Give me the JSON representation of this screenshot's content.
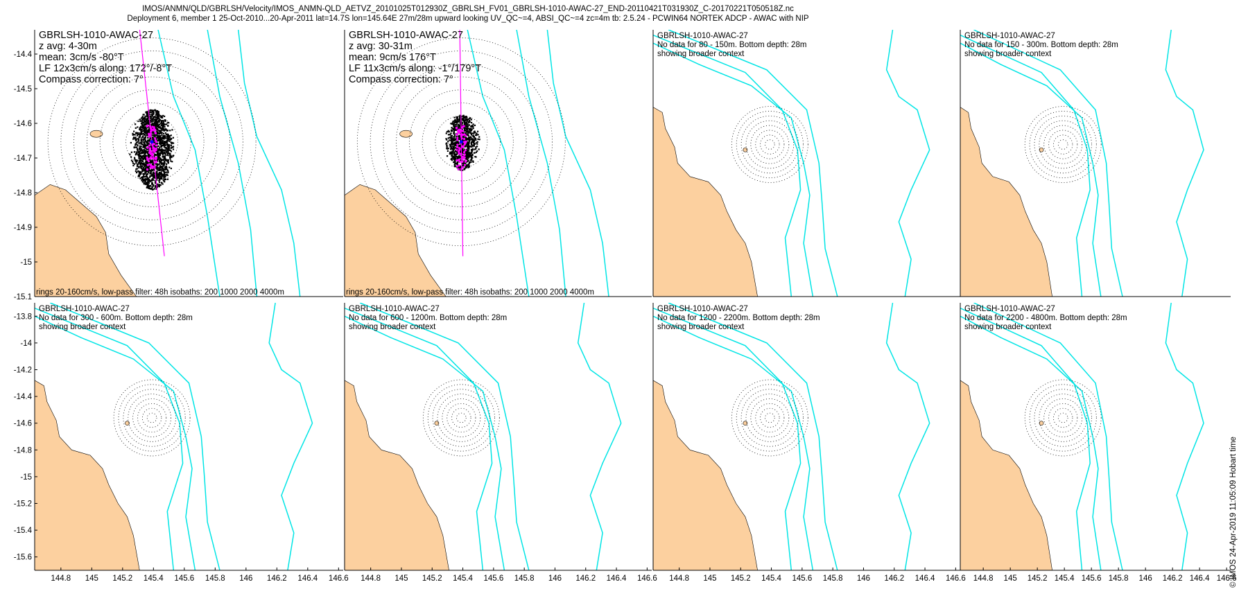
{
  "figure": {
    "title_line1": "IMOS/ANMN/QLD/GBRLSH/Velocity/IMOS_ANMN-QLD_AETVZ_20101025T012930Z_GBRLSH_FV01_GBRLSH-1010-AWAC-27_END-20110421T031930Z_C-20170221T050518Z.nc",
    "title_line2": "Deployment 6, member 1 25-Oct-2010...20-Apr-2011 lat=14.7S lon=145.64E 27m/28m upward looking UV_QC~=4, ABSI_QC~=4 zc=4m tb: 2.5.24 - PCWIN64 NORTEK ADCP - AWAC with NIP",
    "watermark": "© IMOS 24-Apr-2019 11:05:09 Hobart time"
  },
  "colors": {
    "land": "#fcd09f",
    "isobath": "#00e5e5",
    "scatter": "#000000",
    "lowpass": "#ff00ff",
    "mean": "#0000ff"
  },
  "chart_data": [
    {
      "type": "scatter",
      "panel_title": "GBRLSH-1010-AWAC-27",
      "lines": [
        "z avg: 4-30m",
        "mean: 3cm/s -80°T",
        "LF 12x3cm/s along: 172°/-8°T",
        "Compass correction: 7°"
      ],
      "footer": "rings 20-160cm/s, low-pass filter: 48h isobaths: 200 1000 2000 4000m",
      "has_data": true,
      "xlim": [
        144.63,
        146.63
      ],
      "ylim": [
        -15.1,
        -14.33
      ],
      "yticks": [
        -14.4,
        -14.5,
        -14.6,
        -14.7,
        -14.8,
        -14.9,
        -15,
        -15.1
      ],
      "rings_cm_s": [
        20,
        40,
        60,
        80,
        100,
        120,
        140,
        160
      ],
      "along_axis_deg_true": 172,
      "site": [
        145.64,
        -14.7
      ]
    },
    {
      "type": "scatter",
      "panel_title": "GBRLSH-1010-AWAC-27",
      "lines": [
        "z avg: 30-31m",
        "mean: 9cm/s 176°T",
        "LF 11x3cm/s along: -1°/179°T",
        "Compass correction: 7°"
      ],
      "footer": "rings 20-160cm/s, low-pass filter: 48h isobaths: 200 1000 2000 4000m",
      "has_data": true,
      "xlim": [
        144.63,
        146.63
      ],
      "ylim": [
        -15.1,
        -14.33
      ],
      "rings_cm_s": [
        20,
        40,
        60,
        80,
        100,
        120,
        140,
        160
      ],
      "along_axis_deg_true": 179,
      "site": [
        145.64,
        -14.7
      ]
    },
    {
      "type": "scatter",
      "panel_title": "GBRLSH-1010-AWAC-27",
      "lines": [
        "No data for 80 - 150m. Bottom depth: 28m",
        "showing broader context"
      ],
      "has_data": false,
      "site": [
        145.64,
        -14.7
      ]
    },
    {
      "type": "scatter",
      "panel_title": "GBRLSH-1010-AWAC-27",
      "lines": [
        "No data for 150 - 300m. Bottom depth: 28m",
        "showing broader context"
      ],
      "has_data": false,
      "site": [
        145.64,
        -14.7
      ]
    },
    {
      "type": "scatter",
      "panel_title": "GBRLSH-1010-AWAC-27",
      "lines": [
        "No data for 300 - 600m. Bottom depth: 28m",
        "showing broader context"
      ],
      "has_data": false,
      "xlim": [
        144.63,
        146.63
      ],
      "ylim": [
        -15.7,
        -13.7
      ],
      "xticks": [
        144.8,
        145,
        145.2,
        145.4,
        145.6,
        145.8,
        146,
        146.2,
        146.4,
        146.6
      ],
      "yticks": [
        -13.8,
        -14,
        -14.2,
        -14.4,
        -14.6,
        -14.8,
        -15,
        -15.2,
        -15.4,
        -15.6
      ],
      "site": [
        145.64,
        -14.7
      ]
    },
    {
      "type": "scatter",
      "panel_title": "GBRLSH-1010-AWAC-27",
      "lines": [
        "No data for 600 - 1200m. Bottom depth: 28m",
        "showing broader context"
      ],
      "has_data": false,
      "xticks": [
        144.8,
        145,
        145.2,
        145.4,
        145.6,
        145.8,
        146,
        146.2,
        146.4,
        146.6
      ],
      "site": [
        145.64,
        -14.7
      ]
    },
    {
      "type": "scatter",
      "panel_title": "GBRLSH-1010-AWAC-27",
      "lines": [
        "No data for 1200 - 2200m. Bottom depth: 28m",
        "showing broader context"
      ],
      "has_data": false,
      "xticks": [
        144.8,
        145,
        145.2,
        145.4,
        145.6,
        145.8,
        146,
        146.2,
        146.4,
        146.6
      ],
      "site": [
        145.64,
        -14.7
      ]
    },
    {
      "type": "scatter",
      "panel_title": "GBRLSH-1010-AWAC-27",
      "lines": [
        "No data for 2200 - 4800m. Bottom depth: 28m",
        "showing broader context"
      ],
      "has_data": false,
      "xticks": [
        144.8,
        145,
        145.2,
        145.4,
        145.6,
        145.8,
        146,
        146.2,
        146.4,
        146.6
      ],
      "site": [
        145.64,
        -14.7
      ]
    }
  ]
}
